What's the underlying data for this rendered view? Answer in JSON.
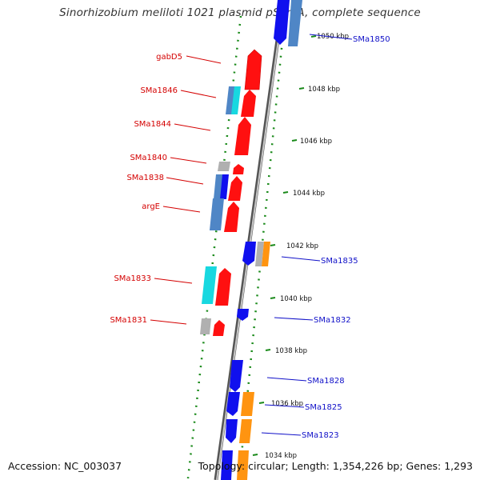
{
  "title": "Sinorhizobium meliloti 1021 plasmid pSymA, complete sequence",
  "footer": {
    "accession": "Accession: NC_003037",
    "topology": "Topology: circular; Length: 1,354,226 bp; Genes: 1,293"
  },
  "colors": {
    "backbone": "#8a8a8a",
    "dots": "#1a8a1a",
    "forward": "#ff1010",
    "reverse": "#1010ee",
    "cyan": "#18d8e0",
    "steel": "#4f86c6",
    "grey": "#b0b0b0",
    "orange": "#ff9410",
    "left_label": "#d40000",
    "right_label": "#1010c8"
  },
  "ticks": [
    "1050 kbp",
    "1048 kbp",
    "1046 kbp",
    "1044 kbp",
    "1042 kbp",
    "1040 kbp",
    "1038 kbp",
    "1036 kbp",
    "1034 kbp"
  ],
  "left_labels": [
    "gabD5",
    "SMa1846",
    "SMa1844",
    "SMa1840",
    "SMa1838",
    "argE",
    "SMa1833",
    "SMa1831"
  ],
  "right_labels": [
    "SMa1850",
    "SMa1835",
    "SMa1832",
    "SMa1828",
    "SMa1825",
    "SMa1823"
  ]
}
